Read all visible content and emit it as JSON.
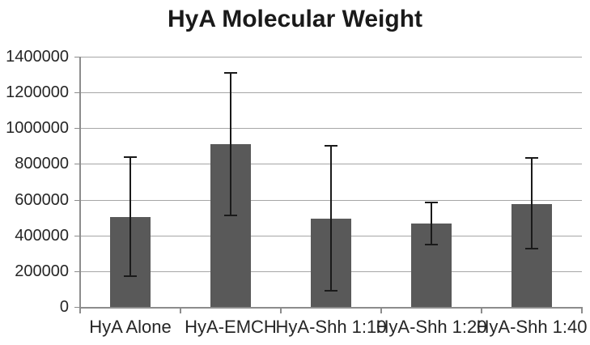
{
  "chart_data": {
    "type": "bar",
    "title": "HyA Molecular Weight",
    "xlabel": "",
    "ylabel": "",
    "categories": [
      "HyA Alone",
      "HyA-EMCH",
      "HyA-Shh 1:10",
      "HyA-Shh 1:20",
      "HyA-Shh 1:40"
    ],
    "values": [
      505000,
      910000,
      495000,
      465000,
      575000
    ],
    "error_low": [
      170000,
      510000,
      90000,
      350000,
      325000
    ],
    "error_high": [
      840000,
      1310000,
      900000,
      585000,
      835000
    ],
    "ylim": [
      0,
      1400000
    ],
    "ytick_step": 200000,
    "ytick_labels": [
      "0",
      "200000",
      "400000",
      "600000",
      "800000",
      "1000000",
      "1200000",
      "1400000"
    ],
    "grid": true,
    "legend": "none",
    "colors": {
      "bar": "#595959",
      "error_bar": "#1a1a1a",
      "gridline": "#a6a6a6",
      "axis": "#8c8c8c",
      "text": "#262626",
      "title_text": "#1a1a1a",
      "background": "#ffffff"
    }
  }
}
